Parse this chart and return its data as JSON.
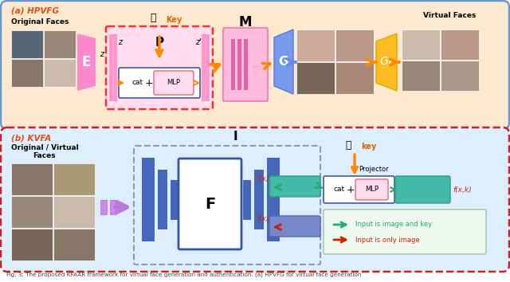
{
  "fig_width": 6.4,
  "fig_height": 3.54,
  "dpi": 100,
  "panel_a": {
    "label": "(a) HPVFG",
    "label_color": "#e05010",
    "bg_color": "#fde8d0",
    "border_color": "#6699cc",
    "encoder_color": "#ff88cc",
    "p_dashed_color": "#ee3333",
    "p_bg_color": "#ffddee",
    "pink_bar_color": "#ff99cc",
    "m_bg_color": "#ffbbdd",
    "m_bar_color": "#dd66aa",
    "g_color": "#7799ee",
    "gf_color": "#ffbb22",
    "arrow_orange": "#ff8800",
    "arrow_blue": "#6688ee",
    "cat_border": "#4455aa",
    "mlp_bg": "#ffddee",
    "mlp_border": "#dd6688",
    "key_color": "#dd6600"
  },
  "panel_b": {
    "label": "(b) KVFA",
    "label_color": "#e05010",
    "bg_color": "#ddeeff",
    "border_color": "#cc2222",
    "dashed_border": "#8899bb",
    "f_border": "#3355aa",
    "bar_color": "#4466bb",
    "teal_color": "#44bbaa",
    "blue_box_color": "#7788cc",
    "cat_border": "#4455aa",
    "mlp_bg": "#ffddee",
    "mlp_border": "#dd6688",
    "green_color": "#22aa77",
    "red_color": "#cc2200",
    "purple_color": "#bb77dd",
    "arrow_orange": "#ff8800",
    "key_color": "#dd6600",
    "legend_bg": "#eef8ee"
  },
  "caption": "Fig. 3: The proposed KFAAR framework for virtual face generation and authentication. (a) HPVFG for virtual face generation",
  "caption_color": "#444444",
  "caption_fontsize": 5.2
}
